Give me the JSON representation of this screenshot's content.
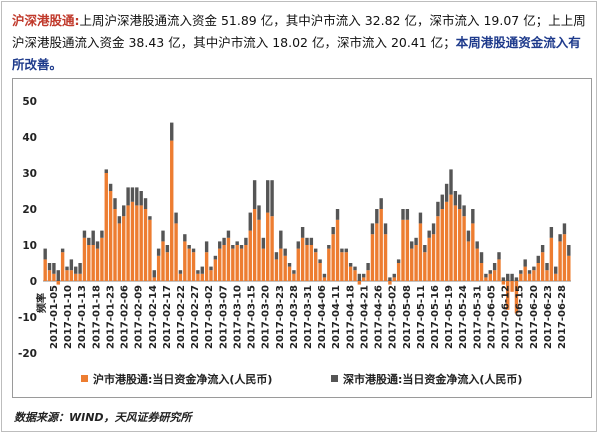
{
  "summary": {
    "lead": "沪深港股通:",
    "line1_rest": "上周沪深港股通流入资金 51.89 亿，其中沪市流入 32.82 亿，深市流入 19.07 亿；上上周沪深港股通流入资金 38.43 亿，其中沪市流入 18.02 亿，深市流入 20.41 亿；",
    "conclusion": "本周港股通资金流入有所改善。"
  },
  "source": "数据来源：WIND，天风证券研究所",
  "colors": {
    "sh": "#ed7d31",
    "sz": "#555555",
    "grid": "#dddddd"
  },
  "chart_data": {
    "type": "bar",
    "stacked": true,
    "title": "",
    "xlabel": "频率",
    "ylabel": "",
    "ylim": [
      -20,
      50
    ],
    "yticks": [
      -20,
      -10,
      0,
      10,
      20,
      30,
      40,
      50
    ],
    "date_labels": [
      "2017-01-05",
      "2017-01-10",
      "2017-01-13",
      "2017-01-18",
      "2017-01-23",
      "2017-02-06",
      "2017-02-09",
      "2017-02-14",
      "2017-02-17",
      "2017-02-22",
      "2017-02-27",
      "2017-03-02",
      "2017-03-07",
      "2017-03-10",
      "2017-03-15",
      "2017-03-20",
      "2017-03-23",
      "2017-03-28",
      "2017-03-31",
      "2017-04-06",
      "2017-04-11",
      "2017-04-18",
      "2017-04-21",
      "2017-04-26",
      "2017-05-02",
      "2017-05-08",
      "2017-05-11",
      "2017-05-16",
      "2017-05-19",
      "2017-05-24",
      "2017-05-31",
      "2017-06-05",
      "2017-06-12",
      "2017-06-15",
      "2017-06-20",
      "2017-06-23",
      "2017-06-28"
    ],
    "series": [
      {
        "name": "沪市港股通:当日资金净流入(人民币)",
        "values": [
          6,
          3,
          2,
          -1,
          8,
          3,
          3,
          2,
          2,
          12,
          10,
          10,
          9,
          12,
          30,
          25,
          20,
          16,
          18,
          21,
          22,
          21,
          21,
          20,
          17,
          1,
          7,
          11,
          8,
          39,
          16,
          2,
          11,
          9,
          8,
          2,
          2,
          8,
          3,
          6,
          9,
          10,
          12,
          9,
          10,
          9,
          10,
          14,
          20,
          17,
          9,
          19,
          18,
          6,
          9,
          7,
          4,
          2,
          9,
          12,
          10,
          10,
          8,
          5,
          1,
          9,
          13,
          17,
          8,
          8,
          4,
          3,
          -1,
          1,
          3,
          13,
          16,
          20,
          13,
          -1,
          1,
          5,
          17,
          17,
          9,
          10,
          16,
          8,
          12,
          13,
          18,
          20,
          22,
          24,
          21,
          20,
          18,
          11,
          16,
          9,
          5,
          1,
          2,
          3,
          6,
          -1,
          -8,
          -3,
          -9,
          2,
          4,
          2,
          3,
          5,
          8,
          3,
          12,
          2,
          11,
          13,
          7
        ]
      },
      {
        "name": "深市港股通:当日资金净流入(人民币)",
        "values": [
          3,
          2,
          3,
          3,
          1,
          1,
          3,
          2,
          3,
          2,
          2,
          4,
          2,
          2,
          1,
          2,
          3,
          2,
          3,
          5,
          4,
          5,
          4,
          3,
          1,
          2,
          2,
          3,
          2,
          5,
          3,
          1,
          2,
          1,
          1,
          1,
          2,
          3,
          1,
          1,
          2,
          2,
          2,
          1,
          1,
          1,
          2,
          5,
          8,
          4,
          3,
          9,
          10,
          2,
          5,
          2,
          1,
          1,
          2,
          3,
          2,
          2,
          1,
          1,
          1,
          1,
          2,
          3,
          1,
          1,
          1,
          1,
          2,
          1,
          2,
          3,
          4,
          3,
          3,
          1,
          1,
          1,
          3,
          3,
          2,
          2,
          3,
          2,
          2,
          3,
          4,
          4,
          5,
          7,
          4,
          4,
          3,
          3,
          4,
          2,
          3,
          1,
          1,
          2,
          2,
          1,
          2,
          2,
          1,
          1,
          2,
          1,
          1,
          2,
          2,
          2,
          3,
          2,
          2,
          3,
          3
        ]
      }
    ],
    "legend_placement": "bottom"
  }
}
